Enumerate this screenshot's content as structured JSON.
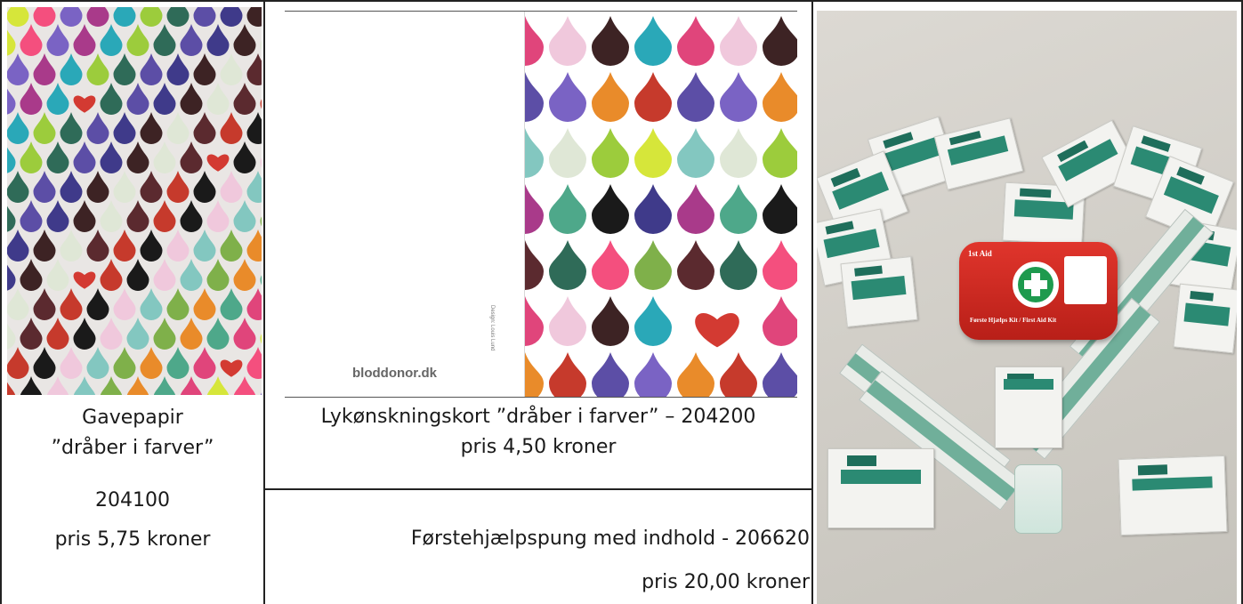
{
  "products": {
    "wrapping_paper": {
      "name_line1": "Gavepapir",
      "name_line2": "”dråber i farver”",
      "number": "204100",
      "price": "pris 5,75 kroner"
    },
    "greeting_card": {
      "card_text": "bloddonor.dk",
      "side_text": "Design: Louis Lund",
      "title": "Lykønskningskort ”dråber i farver” – 204200",
      "price": "pris 4,50 kroner"
    },
    "first_aid": {
      "title": "Førstehjælpspung med indhold - 206620",
      "price": "pris 20,00 kroner",
      "pouch_text": "Første Hjælps Kit / First Aid Kit",
      "packet_brand": "1st Aid"
    }
  },
  "colors": {
    "drop_palette": [
      "#e0457b",
      "#7a63c4",
      "#9ccc3c",
      "#3f3a8a",
      "#5b2a2f",
      "#f0c8dc",
      "#e98b2a",
      "#d6e63a",
      "#a93a8a",
      "#2f6b58",
      "#3d2324",
      "#c63a2c",
      "#83c7c0",
      "#4ea88a",
      "#f44f7e",
      "#2aa8b8",
      "#5c4ea6",
      "#dfe7d6",
      "#1a1a1a",
      "#7fb04a"
    ],
    "heart": "#d33a32",
    "pouch": "#d62a23",
    "packet_band": "#2b8a73"
  }
}
